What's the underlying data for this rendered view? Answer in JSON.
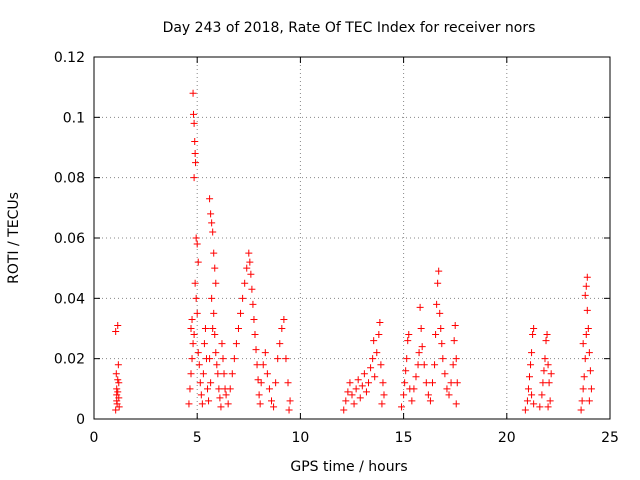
{
  "chart_data": {
    "type": "scatter",
    "title": "Day 243 of 2018, Rate Of TEC Index for receiver nors",
    "xlabel": "GPS time / hours",
    "ylabel": "ROTI / TECUs",
    "xlim": [
      0,
      25
    ],
    "ylim": [
      0,
      0.12
    ],
    "xticks": [
      0,
      5,
      10,
      15,
      20,
      25
    ],
    "xtick_labels": [
      "0",
      "5",
      "10",
      "15",
      "20",
      "25"
    ],
    "yticks": [
      0,
      0.02,
      0.04,
      0.06,
      0.08,
      0.1,
      0.12
    ],
    "ytick_labels": [
      "0",
      "0.02",
      "0.04",
      "0.06",
      "0.08",
      "0.1",
      "0.12"
    ],
    "grid": true,
    "legend": "none",
    "marker": "+",
    "color": "#ff0000",
    "series": [
      {
        "points": [
          [
            1.05,
            0.003
          ],
          [
            1.1,
            0.006
          ],
          [
            1.15,
            0.009
          ],
          [
            1.2,
            0.012
          ],
          [
            1.08,
            0.015
          ],
          [
            1.18,
            0.018
          ],
          [
            1.12,
            0.005
          ],
          [
            1.22,
            0.004
          ],
          [
            1.1,
            0.01
          ],
          [
            1.15,
            0.013
          ],
          [
            1.05,
            0.029
          ],
          [
            1.15,
            0.031
          ],
          [
            1.1,
            0.008
          ],
          [
            1.2,
            0.007
          ],
          [
            4.6,
            0.005
          ],
          [
            4.65,
            0.01
          ],
          [
            4.7,
            0.015
          ],
          [
            4.75,
            0.02
          ],
          [
            4.8,
            0.025
          ],
          [
            4.7,
            0.03
          ],
          [
            4.75,
            0.033
          ],
          [
            4.8,
            0.108
          ],
          [
            4.82,
            0.101
          ],
          [
            4.85,
            0.098
          ],
          [
            4.88,
            0.092
          ],
          [
            4.9,
            0.088
          ],
          [
            4.92,
            0.085
          ],
          [
            4.85,
            0.08
          ],
          [
            4.95,
            0.06
          ],
          [
            5.0,
            0.058
          ],
          [
            5.05,
            0.052
          ],
          [
            4.9,
            0.045
          ],
          [
            4.95,
            0.04
          ],
          [
            5.0,
            0.035
          ],
          [
            4.85,
            0.028
          ],
          [
            5.05,
            0.022
          ],
          [
            5.1,
            0.018
          ],
          [
            5.15,
            0.012
          ],
          [
            5.2,
            0.008
          ],
          [
            5.25,
            0.005
          ],
          [
            5.3,
            0.015
          ],
          [
            5.35,
            0.025
          ],
          [
            5.4,
            0.03
          ],
          [
            5.45,
            0.02
          ],
          [
            5.5,
            0.01
          ],
          [
            5.55,
            0.006
          ],
          [
            5.6,
            0.073
          ],
          [
            5.65,
            0.068
          ],
          [
            5.7,
            0.065
          ],
          [
            5.75,
            0.062
          ],
          [
            5.8,
            0.055
          ],
          [
            5.85,
            0.05
          ],
          [
            5.9,
            0.045
          ],
          [
            5.7,
            0.04
          ],
          [
            5.8,
            0.035
          ],
          [
            5.75,
            0.03
          ],
          [
            5.85,
            0.028
          ],
          [
            5.9,
            0.022
          ],
          [
            5.95,
            0.018
          ],
          [
            6.0,
            0.015
          ],
          [
            6.05,
            0.01
          ],
          [
            6.1,
            0.007
          ],
          [
            6.15,
            0.004
          ],
          [
            5.65,
            0.012
          ],
          [
            5.6,
            0.02
          ],
          [
            6.2,
            0.025
          ],
          [
            6.25,
            0.02
          ],
          [
            6.3,
            0.015
          ],
          [
            6.35,
            0.01
          ],
          [
            6.4,
            0.008
          ],
          [
            6.5,
            0.005
          ],
          [
            6.6,
            0.01
          ],
          [
            6.7,
            0.015
          ],
          [
            6.8,
            0.02
          ],
          [
            6.9,
            0.025
          ],
          [
            7.0,
            0.03
          ],
          [
            7.1,
            0.035
          ],
          [
            7.2,
            0.04
          ],
          [
            7.3,
            0.045
          ],
          [
            7.4,
            0.05
          ],
          [
            7.5,
            0.055
          ],
          [
            7.55,
            0.052
          ],
          [
            7.6,
            0.048
          ],
          [
            7.65,
            0.043
          ],
          [
            7.7,
            0.038
          ],
          [
            7.75,
            0.033
          ],
          [
            7.8,
            0.028
          ],
          [
            7.85,
            0.023
          ],
          [
            7.9,
            0.018
          ],
          [
            7.95,
            0.013
          ],
          [
            8.0,
            0.008
          ],
          [
            8.05,
            0.005
          ],
          [
            8.1,
            0.012
          ],
          [
            8.2,
            0.018
          ],
          [
            8.3,
            0.022
          ],
          [
            8.4,
            0.015
          ],
          [
            8.5,
            0.01
          ],
          [
            8.6,
            0.006
          ],
          [
            8.7,
            0.004
          ],
          [
            8.8,
            0.012
          ],
          [
            8.9,
            0.02
          ],
          [
            9.0,
            0.025
          ],
          [
            9.1,
            0.03
          ],
          [
            9.2,
            0.033
          ],
          [
            9.3,
            0.02
          ],
          [
            9.4,
            0.012
          ],
          [
            9.5,
            0.006
          ],
          [
            9.45,
            0.003
          ],
          [
            12.1,
            0.003
          ],
          [
            12.2,
            0.006
          ],
          [
            12.3,
            0.009
          ],
          [
            12.4,
            0.012
          ],
          [
            12.5,
            0.008
          ],
          [
            12.6,
            0.005
          ],
          [
            12.7,
            0.01
          ],
          [
            12.8,
            0.013
          ],
          [
            12.9,
            0.007
          ],
          [
            13.0,
            0.011
          ],
          [
            13.1,
            0.015
          ],
          [
            13.2,
            0.009
          ],
          [
            13.3,
            0.012
          ],
          [
            13.4,
            0.017
          ],
          [
            13.5,
            0.02
          ],
          [
            13.55,
            0.026
          ],
          [
            13.6,
            0.014
          ],
          [
            13.7,
            0.022
          ],
          [
            13.8,
            0.028
          ],
          [
            13.85,
            0.032
          ],
          [
            13.9,
            0.018
          ],
          [
            14.0,
            0.012
          ],
          [
            14.05,
            0.008
          ],
          [
            13.95,
            0.005
          ],
          [
            14.9,
            0.004
          ],
          [
            15.0,
            0.008
          ],
          [
            15.05,
            0.012
          ],
          [
            15.1,
            0.016
          ],
          [
            15.15,
            0.02
          ],
          [
            15.2,
            0.026
          ],
          [
            15.25,
            0.028
          ],
          [
            15.3,
            0.01
          ],
          [
            15.4,
            0.006
          ],
          [
            15.5,
            0.01
          ],
          [
            15.6,
            0.014
          ],
          [
            15.7,
            0.018
          ],
          [
            15.75,
            0.022
          ],
          [
            15.8,
            0.037
          ],
          [
            15.85,
            0.03
          ],
          [
            15.9,
            0.024
          ],
          [
            16.0,
            0.018
          ],
          [
            16.1,
            0.012
          ],
          [
            16.2,
            0.008
          ],
          [
            16.3,
            0.006
          ],
          [
            16.4,
            0.012
          ],
          [
            16.5,
            0.018
          ],
          [
            16.55,
            0.028
          ],
          [
            16.6,
            0.038
          ],
          [
            16.65,
            0.045
          ],
          [
            16.7,
            0.049
          ],
          [
            16.75,
            0.035
          ],
          [
            16.8,
            0.03
          ],
          [
            16.85,
            0.025
          ],
          [
            16.9,
            0.02
          ],
          [
            17.0,
            0.015
          ],
          [
            17.1,
            0.01
          ],
          [
            17.2,
            0.008
          ],
          [
            17.3,
            0.012
          ],
          [
            17.4,
            0.018
          ],
          [
            17.45,
            0.026
          ],
          [
            17.5,
            0.031
          ],
          [
            17.55,
            0.02
          ],
          [
            17.6,
            0.012
          ],
          [
            17.55,
            0.005
          ],
          [
            20.9,
            0.003
          ],
          [
            21.0,
            0.006
          ],
          [
            21.05,
            0.01
          ],
          [
            21.1,
            0.014
          ],
          [
            21.15,
            0.018
          ],
          [
            21.2,
            0.022
          ],
          [
            21.25,
            0.028
          ],
          [
            21.3,
            0.03
          ],
          [
            21.2,
            0.008
          ],
          [
            21.3,
            0.005
          ],
          [
            21.6,
            0.004
          ],
          [
            21.7,
            0.008
          ],
          [
            21.75,
            0.012
          ],
          [
            21.8,
            0.016
          ],
          [
            21.85,
            0.02
          ],
          [
            21.9,
            0.026
          ],
          [
            21.95,
            0.028
          ],
          [
            22.0,
            0.018
          ],
          [
            22.05,
            0.012
          ],
          [
            22.1,
            0.006
          ],
          [
            22.15,
            0.015
          ],
          [
            22.0,
            0.004
          ],
          [
            23.6,
            0.003
          ],
          [
            23.65,
            0.006
          ],
          [
            23.7,
            0.01
          ],
          [
            23.75,
            0.014
          ],
          [
            23.8,
            0.02
          ],
          [
            23.85,
            0.028
          ],
          [
            23.9,
            0.036
          ],
          [
            23.8,
            0.041
          ],
          [
            23.85,
            0.044
          ],
          [
            23.9,
            0.047
          ],
          [
            23.95,
            0.03
          ],
          [
            24.0,
            0.022
          ],
          [
            24.05,
            0.016
          ],
          [
            24.1,
            0.01
          ],
          [
            24.0,
            0.006
          ],
          [
            23.7,
            0.025
          ]
        ]
      }
    ]
  }
}
